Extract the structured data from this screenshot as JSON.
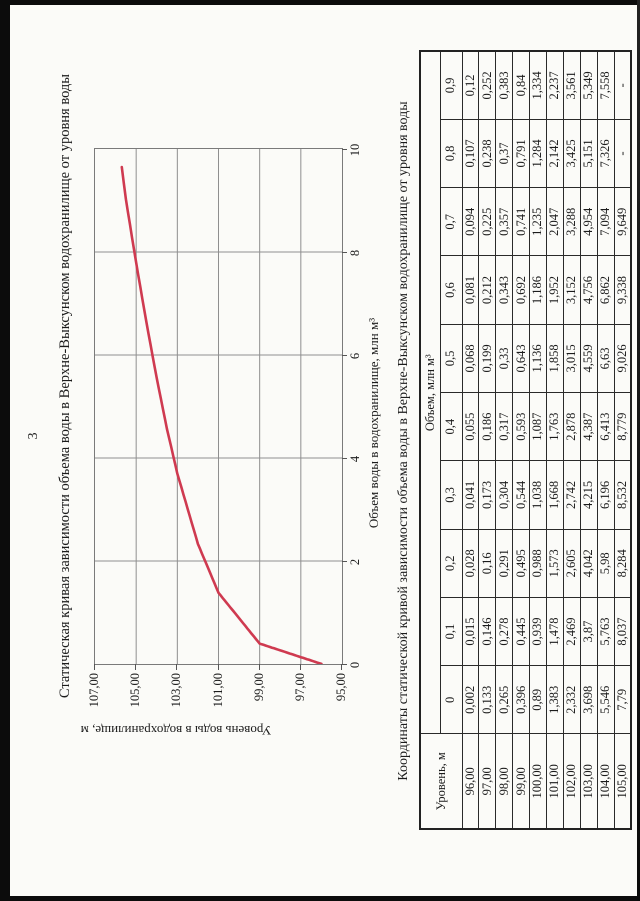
{
  "page": {
    "number": "3"
  },
  "colors": {
    "curve": "#cf3a50",
    "grid": "#8f8f8f",
    "frame": "#7a7a7a",
    "tick": "#555555",
    "paper": "#fbfbf8",
    "scan_edge": "#0c0c0c"
  },
  "chart_data": {
    "type": "line",
    "title": "Статическая кривая зависимости объема воды в Верхне-Выксунском водохранилище от уровня воды",
    "xlabel": "Объем воды в водохранилище, млн м³",
    "ylabel": "Уровень воды в водохранилище, м",
    "xlim": [
      0,
      10
    ],
    "ylim": [
      95,
      107
    ],
    "x_tick_labels": [
      "0",
      "2",
      "4",
      "6",
      "8",
      "10"
    ],
    "x_tick_values": [
      0,
      2,
      4,
      6,
      8,
      10
    ],
    "y_tick_labels": [
      "107,00",
      "105,00",
      "103,00",
      "101,00",
      "99,00",
      "97,00",
      "95,00"
    ],
    "y_tick_values": [
      107,
      105,
      103,
      101,
      99,
      97,
      95
    ],
    "grid": true,
    "legend": false,
    "line_color": "#cf3a50",
    "series": [
      {
        "name": "Статическая кривая",
        "level_start": 96.0,
        "level_step": 0.1,
        "volumes": [
          0.002,
          0.015,
          0.028,
          0.041,
          0.055,
          0.068,
          0.081,
          0.094,
          0.107,
          0.12,
          0.133,
          0.146,
          0.16,
          0.173,
          0.186,
          0.199,
          0.212,
          0.225,
          0.238,
          0.252,
          0.265,
          0.278,
          0.291,
          0.304,
          0.317,
          0.33,
          0.343,
          0.357,
          0.37,
          0.383,
          0.396,
          0.445,
          0.495,
          0.544,
          0.593,
          0.643,
          0.692,
          0.741,
          0.791,
          0.84,
          0.89,
          0.939,
          0.988,
          1.038,
          1.087,
          1.136,
          1.186,
          1.235,
          1.284,
          1.334,
          1.383,
          1.478,
          1.573,
          1.668,
          1.763,
          1.858,
          1.952,
          2.047,
          2.142,
          2.237,
          2.332,
          2.469,
          2.605,
          2.742,
          2.878,
          3.015,
          3.152,
          3.288,
          3.425,
          3.561,
          3.698,
          3.87,
          4.042,
          4.215,
          4.387,
          4.559,
          4.756,
          4.954,
          5.151,
          5.349,
          5.546,
          5.763,
          5.98,
          6.196,
          6.413,
          6.63,
          6.862,
          7.094,
          7.326,
          7.558,
          7.79,
          8.037,
          8.284,
          8.532,
          8.779,
          9.026,
          9.338,
          9.649
        ]
      }
    ]
  },
  "table": {
    "title": "Координаты статической кривой зависимости объема воды в Верхне-Выксунском водохранилище от уровня воды",
    "level_header": "Уровень, м",
    "volume_header": "Объем, млн м³",
    "col_headers": [
      "0",
      "0,1",
      "0,2",
      "0,3",
      "0,4",
      "0,5",
      "0,6",
      "0,7",
      "0,8",
      "0,9"
    ],
    "rows": [
      {
        "level": "96,00",
        "values": [
          "0,002",
          "0,015",
          "0,028",
          "0,041",
          "0,055",
          "0,068",
          "0,081",
          "0,094",
          "0,107",
          "0,12"
        ]
      },
      {
        "level": "97,00",
        "values": [
          "0,133",
          "0,146",
          "0,16",
          "0,173",
          "0,186",
          "0,199",
          "0,212",
          "0,225",
          "0,238",
          "0,252"
        ]
      },
      {
        "level": "98,00",
        "values": [
          "0,265",
          "0,278",
          "0,291",
          "0,304",
          "0,317",
          "0,33",
          "0,343",
          "0,357",
          "0,37",
          "0,383"
        ]
      },
      {
        "level": "99,00",
        "values": [
          "0,396",
          "0,445",
          "0,495",
          "0,544",
          "0,593",
          "0,643",
          "0,692",
          "0,741",
          "0,791",
          "0,84"
        ]
      },
      {
        "level": "100,00",
        "values": [
          "0,89",
          "0,939",
          "0,988",
          "1,038",
          "1,087",
          "1,136",
          "1,186",
          "1,235",
          "1,284",
          "1,334"
        ]
      },
      {
        "level": "101,00",
        "values": [
          "1,383",
          "1,478",
          "1,573",
          "1,668",
          "1,763",
          "1,858",
          "1,952",
          "2,047",
          "2,142",
          "2,237"
        ]
      },
      {
        "level": "102,00",
        "values": [
          "2,332",
          "2,469",
          "2,605",
          "2,742",
          "2,878",
          "3,015",
          "3,152",
          "3,288",
          "3,425",
          "3,561"
        ]
      },
      {
        "level": "103,00",
        "values": [
          "3,698",
          "3,87",
          "4,042",
          "4,215",
          "4,387",
          "4,559",
          "4,756",
          "4,954",
          "5,151",
          "5,349"
        ]
      },
      {
        "level": "104,00",
        "values": [
          "5,546",
          "5,763",
          "5,98",
          "6,196",
          "6,413",
          "6,63",
          "6,862",
          "7,094",
          "7,326",
          "7,558"
        ]
      },
      {
        "level": "105,00",
        "values": [
          "7,79",
          "8,037",
          "8,284",
          "8,532",
          "8,779",
          "9,026",
          "9,338",
          "9,649",
          "-",
          "-"
        ]
      }
    ]
  }
}
